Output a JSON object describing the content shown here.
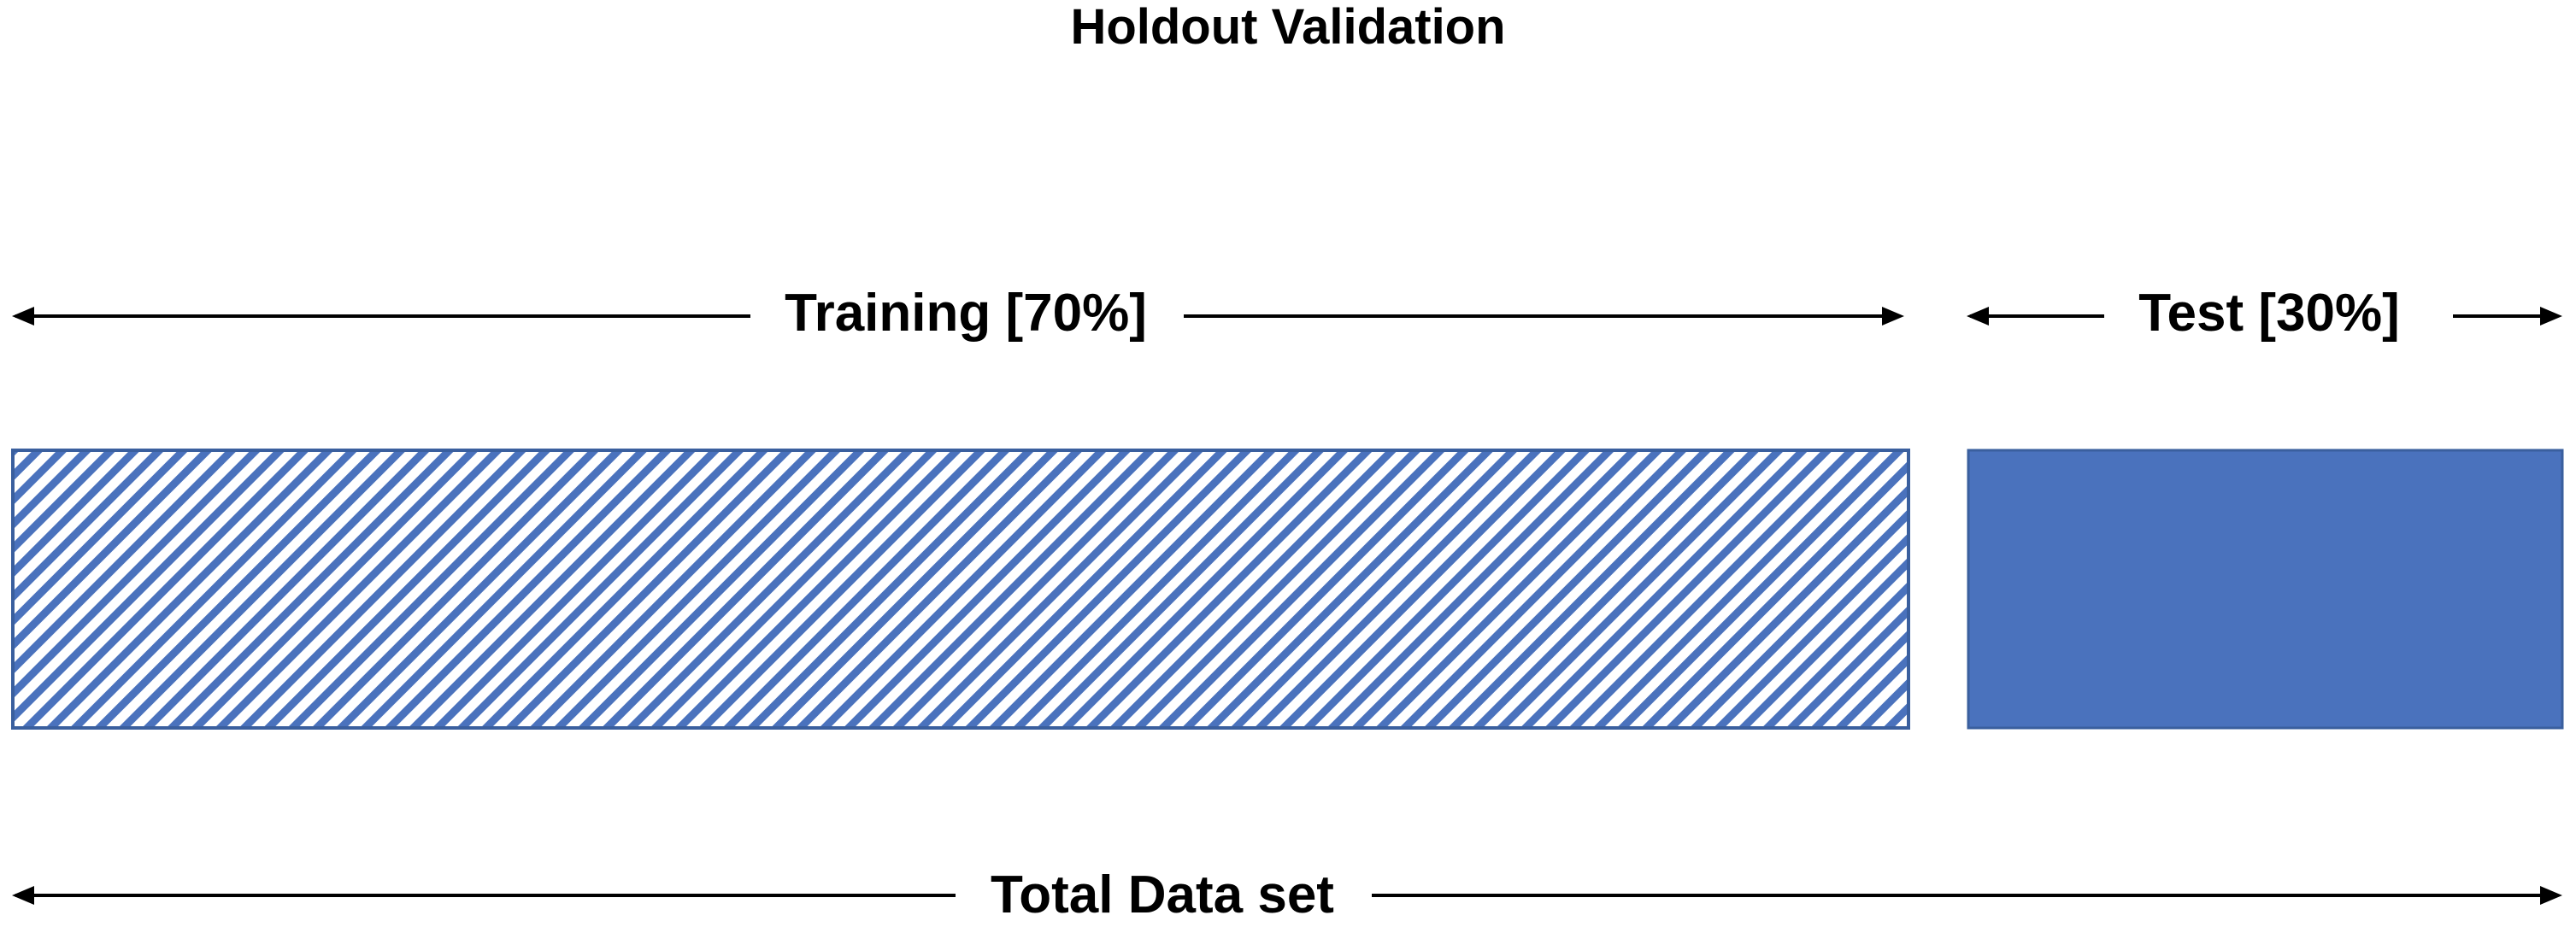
{
  "title": "Holdout Validation",
  "segments": {
    "training": {
      "label": "Training [70%]",
      "share_percent": 70,
      "fill": "hatched",
      "color": "#4A72BD"
    },
    "test": {
      "label": "Test [30%]",
      "share_percent": 30,
      "fill": "solid",
      "color": "#4A72BD"
    }
  },
  "total": {
    "label": "Total Data set"
  },
  "colors": {
    "bar": "#4A72BD",
    "bar_border": "#3A5F9E",
    "arrow": "#000000",
    "background": "#FFFFFF"
  }
}
